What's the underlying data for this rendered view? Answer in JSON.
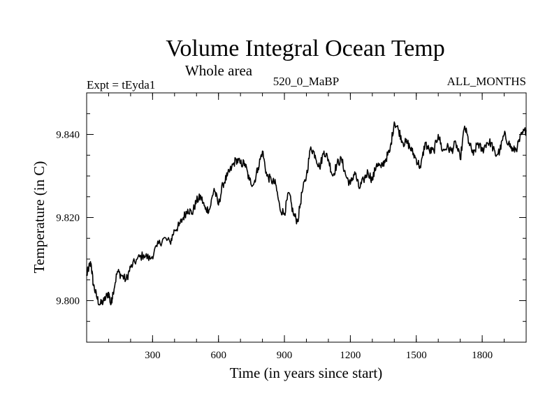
{
  "chart_data": {
    "type": "line",
    "title": "Volume Integral Ocean Temp",
    "subtitle": "Whole area",
    "annotations": {
      "left": "Expt = tEyda1",
      "center": "520_0_MaBP",
      "right": "ALL_MONTHS"
    },
    "xlabel": "Time (in years since start)",
    "ylabel": "Temperature (in C)",
    "xlim": [
      0,
      2000
    ],
    "ylim": [
      9.79,
      9.85
    ],
    "xticks": [
      300,
      600,
      900,
      1200,
      1500,
      1800
    ],
    "xtick_labels": [
      "300",
      "600",
      "900",
      "1200",
      "1500",
      "1800"
    ],
    "xminor_step": 100,
    "yticks": [
      9.8,
      9.82,
      9.84
    ],
    "ytick_labels": [
      "9.800",
      "9.820",
      "9.840"
    ],
    "yminor_step": 0.005,
    "grid": false,
    "series": [
      {
        "name": "Volume Integral Ocean Temp",
        "x": [
          0,
          10,
          20,
          30,
          45,
          60,
          80,
          100,
          110,
          120,
          140,
          160,
          180,
          200,
          230,
          260,
          290,
          320,
          350,
          380,
          400,
          420,
          440,
          460,
          480,
          500,
          520,
          540,
          560,
          580,
          600,
          620,
          640,
          660,
          680,
          700,
          720,
          740,
          760,
          780,
          800,
          820,
          840,
          860,
          880,
          900,
          920,
          940,
          960,
          980,
          1000,
          1020,
          1040,
          1060,
          1080,
          1100,
          1120,
          1140,
          1160,
          1180,
          1200,
          1220,
          1240,
          1260,
          1280,
          1300,
          1320,
          1340,
          1360,
          1380,
          1400,
          1420,
          1440,
          1460,
          1480,
          1500,
          1520,
          1540,
          1560,
          1580,
          1600,
          1620,
          1640,
          1660,
          1680,
          1700,
          1720,
          1740,
          1760,
          1780,
          1800,
          1820,
          1840,
          1860,
          1880,
          1900,
          1920,
          1940,
          1960,
          1980,
          2000
        ],
        "values": [
          9.806,
          9.808,
          9.809,
          9.804,
          9.801,
          9.799,
          9.8,
          9.802,
          9.799,
          9.802,
          9.807,
          9.806,
          9.805,
          9.808,
          9.81,
          9.811,
          9.81,
          9.813,
          9.815,
          9.814,
          9.817,
          9.818,
          9.82,
          9.822,
          9.821,
          9.824,
          9.825,
          9.822,
          9.822,
          9.827,
          9.823,
          9.828,
          9.83,
          9.832,
          9.834,
          9.833,
          9.833,
          9.829,
          9.828,
          9.832,
          9.836,
          9.83,
          9.829,
          9.828,
          9.822,
          9.821,
          9.826,
          9.821,
          9.819,
          9.826,
          9.83,
          9.837,
          9.835,
          9.832,
          9.836,
          9.834,
          9.83,
          9.833,
          9.834,
          9.83,
          9.828,
          9.831,
          9.827,
          9.829,
          9.831,
          9.829,
          9.833,
          9.832,
          9.834,
          9.836,
          9.843,
          9.841,
          9.838,
          9.838,
          9.836,
          9.834,
          9.832,
          9.838,
          9.836,
          9.836,
          9.84,
          9.836,
          9.837,
          9.836,
          9.838,
          9.834,
          9.842,
          9.838,
          9.835,
          9.838,
          9.836,
          9.838,
          9.838,
          9.835,
          9.836,
          9.84,
          9.838,
          9.836,
          9.837,
          9.84,
          9.841
        ]
      }
    ]
  },
  "colors": {
    "line": "#000000",
    "background": "#ffffff"
  }
}
